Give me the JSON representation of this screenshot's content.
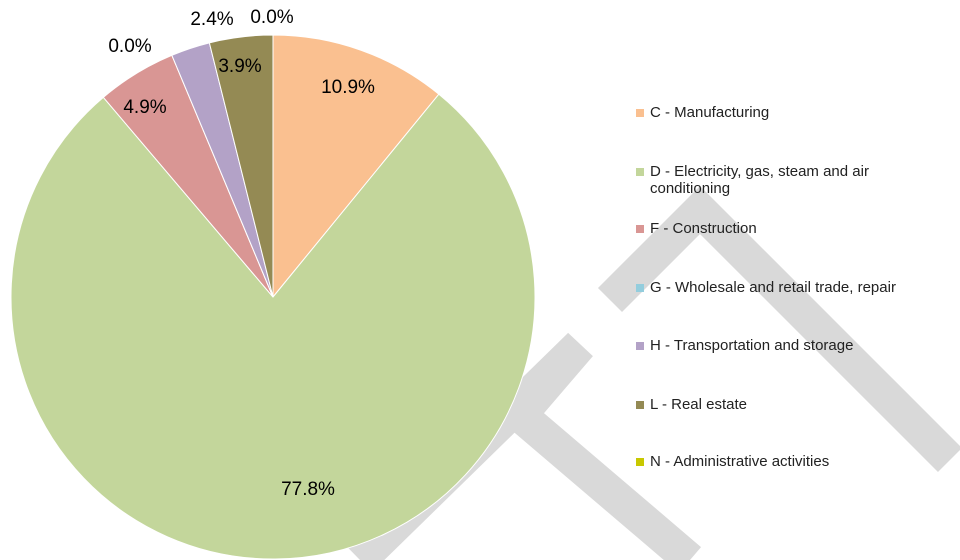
{
  "chart_data": {
    "type": "pie",
    "categories": [
      "C - Manufacturing",
      "D - Electricity, gas, steam and air conditioning",
      "F - Construction",
      "G - Wholesale and retail trade, repair",
      "H - Transportation and storage",
      "L - Real estate",
      "N - Administrative activities"
    ],
    "values": [
      10.9,
      77.8,
      4.9,
      0.0,
      2.4,
      3.9,
      0.0
    ],
    "value_labels": [
      "10.9%",
      "77.8%",
      "4.9%",
      "0.0%",
      "2.4%",
      "3.9%",
      "0.0%"
    ],
    "colors": [
      "#fac090",
      "#c3d69b",
      "#d99694",
      "#93cddd",
      "#b3a2c7",
      "#948a54",
      "#c8c800"
    ],
    "legend": "right"
  }
}
